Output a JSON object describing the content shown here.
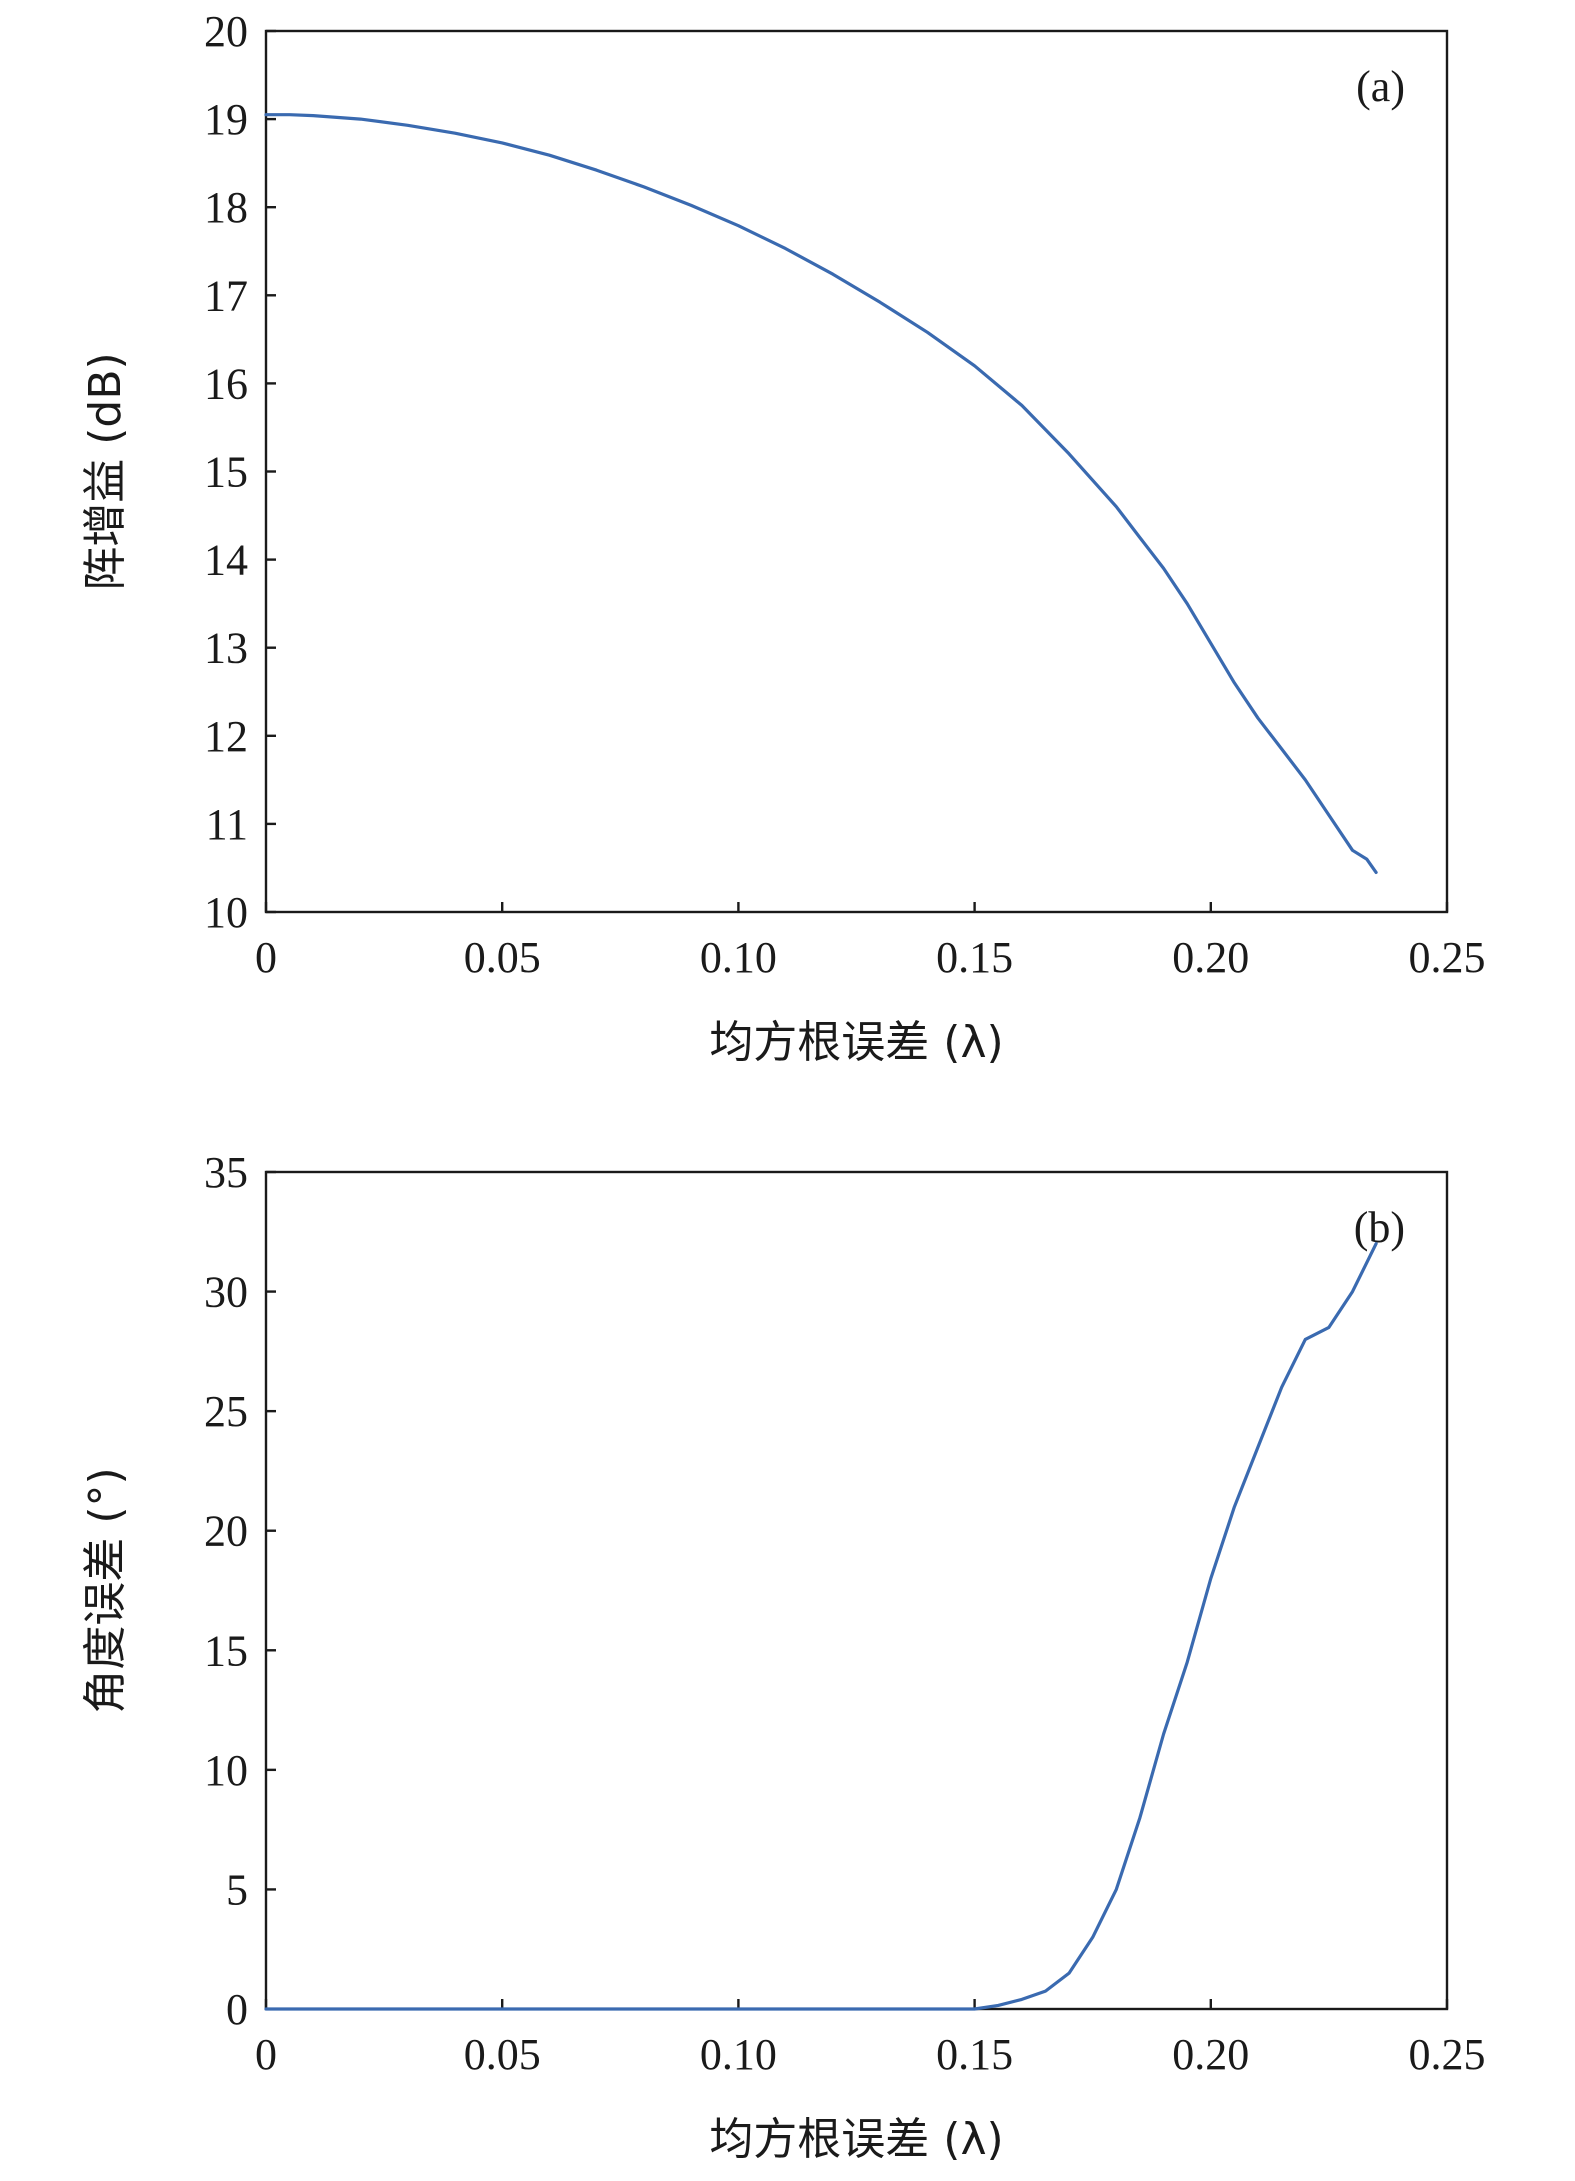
{
  "chart_data": [
    {
      "type": "line",
      "panel_tag": "(a)",
      "xlabel": "均方根误差 (λ)",
      "ylabel": "阵增益 (dB)",
      "xlim": [
        0,
        0.25
      ],
      "ylim": [
        10,
        20
      ],
      "x_ticks": [
        "0",
        "0.05",
        "0.10",
        "0.15",
        "0.20",
        "0.25"
      ],
      "y_ticks": [
        "10",
        "11",
        "12",
        "13",
        "14",
        "15",
        "16",
        "17",
        "18",
        "19",
        "20"
      ],
      "grid": false,
      "color": "#3a6ab0",
      "series": [
        {
          "x": [
            0,
            0.005,
            0.01,
            0.02,
            0.03,
            0.04,
            0.05,
            0.06,
            0.07,
            0.08,
            0.09,
            0.1,
            0.11,
            0.12,
            0.13,
            0.14,
            0.15,
            0.16,
            0.17,
            0.18,
            0.185,
            0.19,
            0.195,
            0.2,
            0.205,
            0.21,
            0.215,
            0.22,
            0.225,
            0.23,
            0.233,
            0.235
          ],
          "y": [
            19.05,
            19.05,
            19.04,
            19.0,
            18.93,
            18.84,
            18.73,
            18.59,
            18.42,
            18.23,
            18.02,
            17.79,
            17.53,
            17.24,
            16.92,
            16.58,
            16.2,
            15.75,
            15.2,
            14.6,
            14.25,
            13.9,
            13.5,
            13.05,
            12.6,
            12.2,
            11.85,
            11.5,
            11.1,
            10.7,
            10.6,
            10.45
          ]
        }
      ]
    },
    {
      "type": "line",
      "panel_tag": "(b)",
      "xlabel": "均方根误差 (λ)",
      "ylabel": "角度误差 (°)",
      "xlim": [
        0,
        0.25
      ],
      "ylim": [
        0,
        35
      ],
      "x_ticks": [
        "0",
        "0.05",
        "0.10",
        "0.15",
        "0.20",
        "0.25"
      ],
      "y_ticks": [
        "0",
        "5",
        "10",
        "15",
        "20",
        "25",
        "30",
        "35"
      ],
      "grid": false,
      "color": "#3a6ab0",
      "series": [
        {
          "x": [
            0,
            0.05,
            0.1,
            0.15,
            0.155,
            0.16,
            0.165,
            0.17,
            0.175,
            0.18,
            0.185,
            0.19,
            0.195,
            0.2,
            0.205,
            0.21,
            0.215,
            0.22,
            0.225,
            0.23,
            0.235
          ],
          "y": [
            0,
            0,
            0,
            0,
            0.15,
            0.4,
            0.75,
            1.5,
            3.0,
            5.0,
            8.0,
            11.5,
            14.5,
            18.0,
            21.0,
            23.5,
            26.0,
            28.0,
            28.5,
            30.0,
            32.0
          ]
        }
      ]
    }
  ]
}
